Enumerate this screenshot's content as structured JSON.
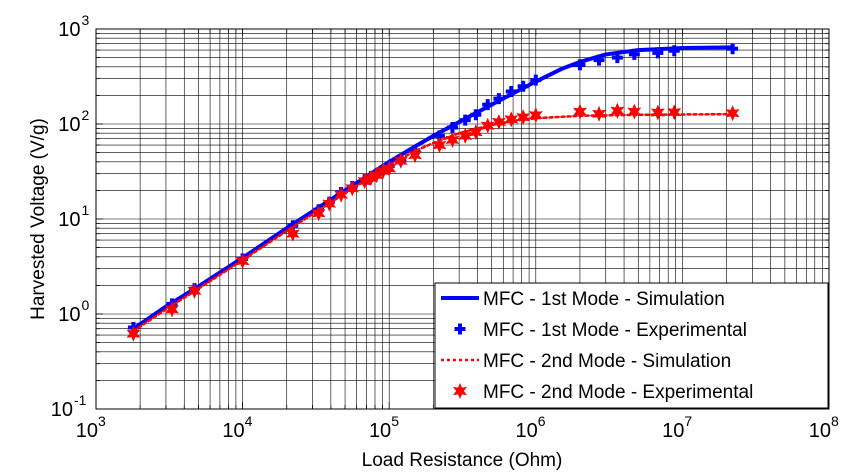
{
  "chart_data": {
    "type": "line",
    "xlabel": "Load Resistance (Ohm)",
    "ylabel": "Harvested Voltage (V/g)",
    "x_scale": "log",
    "y_scale": "log",
    "xlim": [
      1000,
      100000000
    ],
    "ylim": [
      0.1,
      1000
    ],
    "x_ticks": [
      {
        "base": "10",
        "exp": "3",
        "value": 1000
      },
      {
        "base": "10",
        "exp": "4",
        "value": 10000
      },
      {
        "base": "10",
        "exp": "5",
        "value": 100000
      },
      {
        "base": "10",
        "exp": "6",
        "value": 1000000
      },
      {
        "base": "10",
        "exp": "7",
        "value": 10000000
      },
      {
        "base": "10",
        "exp": "8",
        "value": 100000000
      }
    ],
    "y_ticks": [
      {
        "base": "10",
        "exp": "-1",
        "value": 0.1
      },
      {
        "base": "10",
        "exp": "0",
        "value": 1
      },
      {
        "base": "10",
        "exp": "1",
        "value": 10
      },
      {
        "base": "10",
        "exp": "2",
        "value": 100
      },
      {
        "base": "10",
        "exp": "3",
        "value": 1000
      }
    ],
    "grid": true,
    "legend_position": "bottom-right",
    "series": [
      {
        "name": "MFC - 1st Mode - Simulation",
        "style": "solid-line",
        "color": "#0000ff",
        "x": [
          1800,
          3000,
          5000,
          10000,
          20000,
          40000,
          70000,
          100000,
          150000,
          200000,
          300000,
          500000,
          700000,
          1000000,
          1500000,
          2000000,
          3000000,
          5000000,
          10000000,
          22000000
        ],
        "y": [
          0.7,
          1.2,
          1.95,
          3.9,
          8.0,
          16.0,
          28.0,
          40.0,
          58.0,
          75.0,
          105.0,
          160.0,
          210.0,
          280.0,
          380.0,
          450.0,
          540.0,
          600.0,
          630.0,
          640.0
        ]
      },
      {
        "name": "MFC - 1st Mode - Experimental",
        "style": "plus-marker",
        "color": "#0000ff",
        "x": [
          1800,
          3300,
          4700,
          10000,
          22000,
          33000,
          39000,
          47000,
          56000,
          68000,
          75000,
          82000,
          91000,
          100000,
          120000,
          150000,
          220000,
          270000,
          330000,
          390000,
          470000,
          560000,
          680000,
          820000,
          1000000,
          2000000,
          2700000,
          3600000,
          4700000,
          6800000,
          8800000,
          22000000
        ],
        "y": [
          0.72,
          1.28,
          1.85,
          3.8,
          8.5,
          12.5,
          15.0,
          19.0,
          22.0,
          26.0,
          28.0,
          30.0,
          33.0,
          36.0,
          42.0,
          52.0,
          75.0,
          92.0,
          110.0,
          125.0,
          160.0,
          185.0,
          220.0,
          250.0,
          290.0,
          420.0,
          470.0,
          500.0,
          540.0,
          560.0,
          590.0,
          620.0
        ]
      },
      {
        "name": "MFC - 2nd Mode - Simulation",
        "style": "dotted-line",
        "color": "#ff0000",
        "x": [
          1800,
          3000,
          5000,
          10000,
          20000,
          40000,
          70000,
          100000,
          150000,
          200000,
          300000,
          500000,
          700000,
          1000000,
          2000000,
          5000000,
          10000000,
          22000000
        ],
        "y": [
          0.66,
          1.12,
          1.85,
          3.7,
          7.5,
          15.0,
          26.0,
          37.0,
          52.0,
          63.0,
          80.0,
          98.0,
          108.0,
          115.0,
          122.0,
          125.0,
          126.0,
          127.0
        ]
      },
      {
        "name": "MFC - 2nd Mode - Experimental",
        "style": "star-marker",
        "color": "#ff0000",
        "x": [
          1800,
          3300,
          4700,
          10000,
          22000,
          33000,
          39000,
          47000,
          56000,
          68000,
          75000,
          82000,
          91000,
          100000,
          120000,
          150000,
          220000,
          270000,
          330000,
          390000,
          470000,
          560000,
          680000,
          820000,
          1000000,
          2000000,
          2700000,
          3600000,
          4700000,
          6800000,
          8800000,
          22000000
        ],
        "y": [
          0.62,
          1.12,
          1.75,
          3.6,
          7.0,
          11.5,
          14.5,
          18.0,
          21.0,
          25.0,
          27.0,
          29.0,
          32.0,
          34.0,
          41.0,
          47.0,
          60.0,
          68.0,
          75.0,
          82.0,
          96.0,
          105.0,
          112.0,
          118.0,
          124.0,
          135.0,
          128.0,
          138.0,
          135.0,
          132.0,
          133.0,
          130.0
        ]
      }
    ]
  }
}
